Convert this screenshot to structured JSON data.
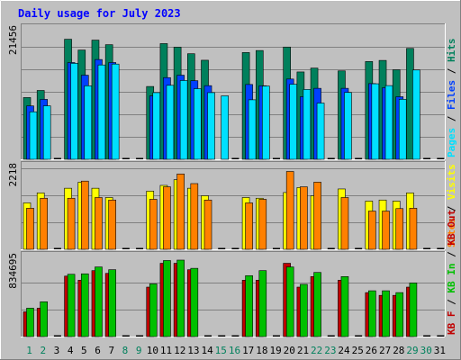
{
  "title": "Daily usage for July 2023",
  "colors": {
    "background": "#C0C0C0",
    "title": "#0000FF",
    "hits": "#00805C",
    "files": "#0040FF",
    "pages": "#00E0FF",
    "visits": "#FFFF00",
    "sites": "#FF8000",
    "kb_in": "#00C000",
    "kb_out": "#C00000",
    "weekend_day_label": "#00805C",
    "weekday_day_label": "#000000"
  },
  "chart_data": [
    {
      "type": "bar",
      "name": "requests-panel",
      "ymax_label": "21456",
      "ylim": [
        0,
        21456
      ],
      "legend": [
        {
          "label": "Pages",
          "color_key": "pages"
        },
        {
          "label": "Files",
          "color_key": "files"
        },
        {
          "label": "Hits",
          "color_key": "hits"
        }
      ],
      "series": [
        {
          "name": "Hits",
          "color_key": "hits",
          "values": [
            10440,
            11640,
            0,
            20300,
            18470,
            20150,
            19380,
            0,
            0,
            12310,
            19560,
            18960,
            17850,
            16750,
            0,
            0,
            18050,
            18390,
            0,
            18980,
            14770,
            15420,
            0,
            14950,
            0,
            16530,
            16720,
            15140,
            18750,
            0,
            0
          ]
        },
        {
          "name": "Files",
          "color_key": "files",
          "values": [
            9030,
            10130,
            0,
            16360,
            14220,
            16870,
            16360,
            0,
            0,
            10710,
            13810,
            14220,
            13290,
            12450,
            0,
            0,
            12650,
            12440,
            0,
            13570,
            10580,
            12000,
            0,
            12000,
            0,
            12800,
            12100,
            10580,
            0,
            0,
            0
          ]
        },
        {
          "name": "Pages",
          "color_key": "pages",
          "values": [
            8030,
            9040,
            0,
            16230,
            12430,
            15950,
            16100,
            0,
            0,
            11270,
            12510,
            13320,
            11940,
            11270,
            10730,
            0,
            10060,
            12390,
            0,
            12690,
            11810,
            9510,
            0,
            11300,
            0,
            12770,
            12460,
            10140,
            15100,
            0,
            0
          ]
        }
      ]
    },
    {
      "type": "bar",
      "name": "visits-panel",
      "ymax_label": "2218",
      "ylim": [
        0,
        2218
      ],
      "legend": [
        {
          "label": "Sites",
          "color_key": "sites"
        },
        {
          "label": "Visits",
          "color_key": "visits"
        }
      ],
      "series": [
        {
          "name": "Visits",
          "color_key": "visits",
          "values": [
            1300,
            1580,
            0,
            1710,
            1880,
            1710,
            1450,
            0,
            0,
            1630,
            1790,
            1950,
            1710,
            1500,
            0,
            0,
            1450,
            1430,
            0,
            1590,
            1730,
            1500,
            0,
            1690,
            0,
            1350,
            1380,
            1350,
            1580,
            0,
            0
          ]
        },
        {
          "name": "Sites",
          "color_key": "sites",
          "values": [
            1150,
            1430,
            0,
            1430,
            1910,
            1450,
            1380,
            0,
            0,
            1400,
            1750,
            2110,
            1840,
            1380,
            0,
            0,
            1300,
            1400,
            0,
            2180,
            1750,
            1880,
            0,
            1450,
            0,
            1070,
            1070,
            1140,
            1150,
            0,
            0
          ]
        }
      ]
    },
    {
      "type": "bar",
      "name": "traffic-panel",
      "ymax_label": "834695",
      "ylim": [
        0,
        834695
      ],
      "legend": [
        {
          "label": "KB F",
          "color_key": "kb_out"
        },
        {
          "label": "KB In",
          "color_key": "kb_in"
        },
        {
          "label": "KB Out",
          "color_key": "kb_out"
        }
      ],
      "series": [
        {
          "name": "KB Out",
          "color_key": "kb_out",
          "values": [
            270000,
            310000,
            0,
            660000,
            615000,
            720000,
            690000,
            0,
            0,
            540000,
            800000,
            800000,
            730000,
            0,
            0,
            0,
            615000,
            615000,
            0,
            800000,
            540000,
            655000,
            0,
            615000,
            0,
            480000,
            450000,
            450000,
            540000,
            0,
            0
          ]
        },
        {
          "name": "KB In",
          "color_key": "kb_in",
          "values": [
            310000,
            380000,
            0,
            680000,
            685000,
            760000,
            730000,
            0,
            0,
            575000,
            830000,
            834695,
            745000,
            0,
            0,
            0,
            665000,
            720000,
            0,
            760000,
            570000,
            700000,
            0,
            655000,
            0,
            500000,
            500000,
            480000,
            585000,
            0,
            0
          ]
        }
      ]
    }
  ],
  "x_axis": {
    "days": [
      "1",
      "2",
      "3",
      "4",
      "5",
      "6",
      "7",
      "8",
      "9",
      "10",
      "11",
      "12",
      "13",
      "14",
      "15",
      "16",
      "17",
      "18",
      "19",
      "20",
      "21",
      "22",
      "23",
      "24",
      "25",
      "26",
      "27",
      "28",
      "29",
      "30",
      "31"
    ],
    "weekend_days": [
      "1",
      "2",
      "8",
      "9",
      "15",
      "16",
      "22",
      "23",
      "29",
      "30"
    ]
  }
}
